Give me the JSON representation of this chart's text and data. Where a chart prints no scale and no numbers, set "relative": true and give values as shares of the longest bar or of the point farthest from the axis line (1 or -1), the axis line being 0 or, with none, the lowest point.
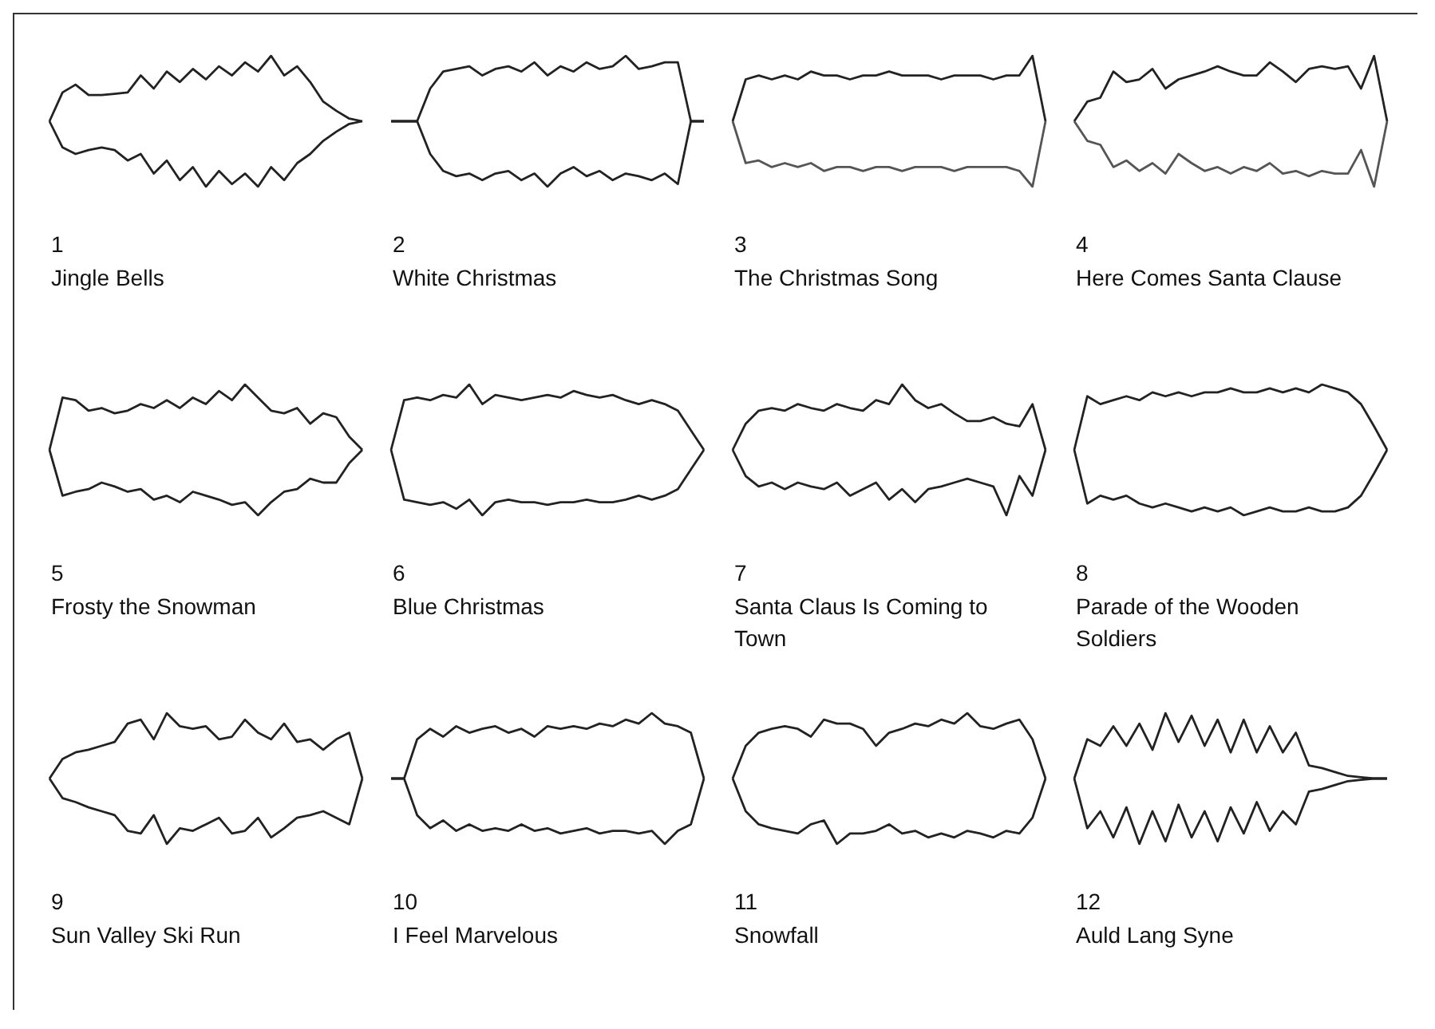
{
  "chart_data": [
    {
      "type": "line",
      "title": "1",
      "subtitle": "Jingle Bells",
      "relative": true,
      "marker": "none",
      "categories": [
        null,
        null,
        null,
        null,
        null,
        null,
        null,
        null,
        null,
        null,
        null,
        null,
        null,
        null,
        null,
        null,
        null,
        null,
        null,
        null,
        null,
        null,
        null,
        null,
        null
      ],
      "series": [
        {
          "color": "#222222",
          "values": [
            0.5,
            0.72,
            0.78,
            0.7,
            0.7,
            0.71,
            0.72,
            0.85,
            0.75,
            0.88,
            0.8,
            0.9,
            0.82,
            0.92,
            0.85,
            0.95,
            0.88,
            1,
            0.85,
            0.92,
            0.8,
            0.65,
            0.58,
            0.52,
            0.5
          ]
        },
        {
          "color": "#222222",
          "values": [
            0.5,
            0.3,
            0.25,
            0.28,
            0.3,
            0.28,
            0.2,
            0.25,
            0.1,
            0.2,
            0.05,
            0.15,
            0,
            0.12,
            0.02,
            0.1,
            0,
            0.15,
            0.05,
            0.18,
            0.25,
            0.35,
            0.42,
            0.48,
            0.5
          ]
        }
      ]
    },
    {
      "type": "line",
      "title": "2",
      "subtitle": "White Christmas",
      "relative": true,
      "marker": "none",
      "categories": [
        null,
        null,
        null,
        null,
        null,
        null,
        null,
        null,
        null,
        null,
        null,
        null,
        null,
        null,
        null,
        null,
        null,
        null,
        null,
        null,
        null,
        null,
        null,
        null,
        null
      ],
      "series": [
        {
          "color": "#222222",
          "values": [
            0.5,
            0.5,
            0.5,
            0.75,
            0.88,
            0.9,
            0.92,
            0.85,
            0.9,
            0.92,
            0.88,
            0.95,
            0.85,
            0.92,
            0.88,
            0.95,
            0.9,
            0.92,
            1,
            0.9,
            0.92,
            0.95,
            0.95,
            0.5,
            0.5
          ]
        },
        {
          "color": "#222222",
          "values": [
            0.5,
            0.5,
            0.5,
            0.25,
            0.12,
            0.08,
            0.1,
            0.05,
            0.1,
            0.12,
            0.05,
            0.1,
            0,
            0.1,
            0.15,
            0.08,
            0.12,
            0.05,
            0.1,
            0.08,
            0.05,
            0.1,
            0.02,
            0.5,
            0.5
          ]
        }
      ]
    },
    {
      "type": "line",
      "title": "3",
      "subtitle": "The Christmas Song",
      "relative": true,
      "marker": "none",
      "categories": [
        null,
        null,
        null,
        null,
        null,
        null,
        null,
        null,
        null,
        null,
        null,
        null,
        null,
        null,
        null,
        null,
        null,
        null,
        null,
        null,
        null,
        null,
        null,
        null,
        null
      ],
      "series": [
        {
          "color": "#222222",
          "values": [
            0.5,
            0.82,
            0.85,
            0.82,
            0.85,
            0.82,
            0.88,
            0.85,
            0.85,
            0.82,
            0.85,
            0.85,
            0.88,
            0.85,
            0.85,
            0.85,
            0.82,
            0.85,
            0.85,
            0.85,
            0.82,
            0.85,
            0.85,
            1,
            0.5
          ]
        },
        {
          "color": "#555555",
          "values": [
            0.5,
            0.18,
            0.2,
            0.15,
            0.18,
            0.15,
            0.18,
            0.12,
            0.15,
            0.15,
            0.12,
            0.15,
            0.15,
            0.12,
            0.15,
            0.15,
            0.15,
            0.12,
            0.15,
            0.15,
            0.15,
            0.15,
            0.12,
            0,
            0.5
          ]
        }
      ]
    },
    {
      "type": "line",
      "title": "4",
      "subtitle": "Here Comes Santa Clause",
      "relative": true,
      "marker": "none",
      "categories": [
        null,
        null,
        null,
        null,
        null,
        null,
        null,
        null,
        null,
        null,
        null,
        null,
        null,
        null,
        null,
        null,
        null,
        null,
        null,
        null,
        null,
        null,
        null,
        null,
        null
      ],
      "series": [
        {
          "color": "#222222",
          "values": [
            0.5,
            0.65,
            0.68,
            0.88,
            0.8,
            0.82,
            0.9,
            0.75,
            0.82,
            0.85,
            0.88,
            0.92,
            0.88,
            0.85,
            0.85,
            0.95,
            0.88,
            0.8,
            0.9,
            0.92,
            0.9,
            0.92,
            0.75,
            1,
            0.5
          ]
        },
        {
          "color": "#555555",
          "values": [
            0.5,
            0.35,
            0.32,
            0.15,
            0.2,
            0.12,
            0.18,
            0.1,
            0.25,
            0.18,
            0.12,
            0.15,
            0.1,
            0.15,
            0.12,
            0.18,
            0.1,
            0.12,
            0.08,
            0.12,
            0.1,
            0.1,
            0.28,
            0,
            0.5
          ]
        }
      ]
    },
    {
      "type": "line",
      "title": "5",
      "subtitle": "Frosty the Snowman",
      "relative": true,
      "marker": "none",
      "categories": [
        null,
        null,
        null,
        null,
        null,
        null,
        null,
        null,
        null,
        null,
        null,
        null,
        null,
        null,
        null,
        null,
        null,
        null,
        null,
        null,
        null,
        null,
        null,
        null,
        null
      ],
      "series": [
        {
          "color": "#222222",
          "values": [
            0.5,
            0.9,
            0.88,
            0.8,
            0.82,
            0.78,
            0.8,
            0.85,
            0.82,
            0.88,
            0.82,
            0.9,
            0.85,
            0.95,
            0.88,
            1,
            0.9,
            0.8,
            0.78,
            0.82,
            0.7,
            0.78,
            0.75,
            0.6,
            0.5
          ]
        },
        {
          "color": "#222222",
          "values": [
            0.5,
            0.15,
            0.18,
            0.2,
            0.25,
            0.22,
            0.18,
            0.2,
            0.12,
            0.15,
            0.1,
            0.18,
            0.15,
            0.12,
            0.08,
            0.1,
            0,
            0.1,
            0.18,
            0.2,
            0.28,
            0.25,
            0.25,
            0.4,
            0.5
          ]
        }
      ]
    },
    {
      "type": "line",
      "title": "6",
      "subtitle": "Blue Christmas",
      "relative": true,
      "marker": "none",
      "categories": [
        null,
        null,
        null,
        null,
        null,
        null,
        null,
        null,
        null,
        null,
        null,
        null,
        null,
        null,
        null,
        null,
        null,
        null,
        null,
        null,
        null,
        null,
        null,
        null,
        null
      ],
      "series": [
        {
          "color": "#222222",
          "values": [
            0.5,
            0.88,
            0.9,
            0.88,
            0.92,
            0.9,
            1,
            0.85,
            0.92,
            0.9,
            0.88,
            0.9,
            0.92,
            0.9,
            0.95,
            0.92,
            0.9,
            0.92,
            0.88,
            0.85,
            0.88,
            0.85,
            0.8,
            0.65,
            0.5
          ]
        },
        {
          "color": "#222222",
          "values": [
            0.5,
            0.12,
            0.1,
            0.08,
            0.1,
            0.05,
            0.12,
            0,
            0.1,
            0.12,
            0.1,
            0.1,
            0.08,
            0.1,
            0.1,
            0.12,
            0.1,
            0.1,
            0.12,
            0.15,
            0.12,
            0.15,
            0.2,
            0.35,
            0.5
          ]
        }
      ]
    },
    {
      "type": "line",
      "title": "7",
      "subtitle": "Santa Claus Is Coming to Town",
      "relative": true,
      "marker": "none",
      "categories": [
        null,
        null,
        null,
        null,
        null,
        null,
        null,
        null,
        null,
        null,
        null,
        null,
        null,
        null,
        null,
        null,
        null,
        null,
        null,
        null,
        null,
        null,
        null,
        null,
        null
      ],
      "series": [
        {
          "color": "#222222",
          "values": [
            0.5,
            0.7,
            0.8,
            0.82,
            0.8,
            0.85,
            0.82,
            0.8,
            0.85,
            0.82,
            0.8,
            0.88,
            0.85,
            1,
            0.88,
            0.82,
            0.85,
            0.78,
            0.72,
            0.72,
            0.75,
            0.7,
            0.68,
            0.85,
            0.5
          ]
        },
        {
          "color": "#222222",
          "values": [
            0.5,
            0.3,
            0.22,
            0.25,
            0.2,
            0.25,
            0.22,
            0.2,
            0.25,
            0.15,
            0.2,
            0.25,
            0.12,
            0.2,
            0.1,
            0.2,
            0.22,
            0.25,
            0.28,
            0.25,
            0.22,
            0,
            0.3,
            0.15,
            0.5
          ]
        }
      ]
    },
    {
      "type": "line",
      "title": "8",
      "subtitle": "Parade of the Wooden Soldiers",
      "relative": true,
      "marker": "none",
      "categories": [
        null,
        null,
        null,
        null,
        null,
        null,
        null,
        null,
        null,
        null,
        null,
        null,
        null,
        null,
        null,
        null,
        null,
        null,
        null,
        null,
        null,
        null,
        null,
        null,
        null
      ],
      "series": [
        {
          "color": "#222222",
          "values": [
            0.5,
            0.91,
            0.85,
            0.88,
            0.91,
            0.88,
            0.94,
            0.91,
            0.94,
            0.91,
            0.94,
            0.94,
            0.97,
            0.94,
            0.94,
            0.97,
            0.94,
            0.97,
            0.94,
            1,
            0.97,
            0.94,
            0.85,
            0.68,
            0.5
          ]
        },
        {
          "color": "#222222",
          "values": [
            0.5,
            0.09,
            0.15,
            0.12,
            0.15,
            0.09,
            0.06,
            0.09,
            0.06,
            0.03,
            0.06,
            0.03,
            0.06,
            0,
            0.03,
            0.06,
            0.03,
            0.03,
            0.06,
            0.03,
            0.03,
            0.06,
            0.15,
            0.32,
            0.5
          ]
        }
      ]
    },
    {
      "type": "line",
      "title": "9",
      "subtitle": "Sun Valley Ski Run",
      "relative": true,
      "marker": "none",
      "categories": [
        null,
        null,
        null,
        null,
        null,
        null,
        null,
        null,
        null,
        null,
        null,
        null,
        null,
        null,
        null,
        null,
        null,
        null,
        null,
        null,
        null,
        null,
        null,
        null,
        null
      ],
      "series": [
        {
          "color": "#222222",
          "values": [
            0.5,
            0.65,
            0.7,
            0.72,
            0.75,
            0.78,
            0.92,
            0.95,
            0.8,
            1,
            0.9,
            0.88,
            0.9,
            0.8,
            0.82,
            0.95,
            0.85,
            0.8,
            0.92,
            0.78,
            0.8,
            0.72,
            0.8,
            0.85,
            0.5
          ]
        },
        {
          "color": "#222222",
          "values": [
            0.5,
            0.35,
            0.32,
            0.28,
            0.25,
            0.22,
            0.1,
            0.08,
            0.22,
            0,
            0.12,
            0.1,
            0.15,
            0.2,
            0.08,
            0.1,
            0.2,
            0.05,
            0.12,
            0.2,
            0.22,
            0.25,
            0.2,
            0.15,
            0.5
          ]
        }
      ]
    },
    {
      "type": "line",
      "title": "10",
      "subtitle": "I Feel Marvelous",
      "relative": true,
      "marker": "none",
      "categories": [
        null,
        null,
        null,
        null,
        null,
        null,
        null,
        null,
        null,
        null,
        null,
        null,
        null,
        null,
        null,
        null,
        null,
        null,
        null,
        null,
        null,
        null,
        null,
        null,
        null
      ],
      "series": [
        {
          "color": "#222222",
          "values": [
            0.5,
            0.5,
            0.8,
            0.88,
            0.82,
            0.9,
            0.85,
            0.88,
            0.9,
            0.85,
            0.88,
            0.82,
            0.9,
            0.88,
            0.9,
            0.88,
            0.92,
            0.9,
            0.95,
            0.92,
            1,
            0.92,
            0.9,
            0.85,
            0.5
          ]
        },
        {
          "color": "#222222",
          "values": [
            0.5,
            0.5,
            0.22,
            0.12,
            0.18,
            0.1,
            0.15,
            0.1,
            0.12,
            0.1,
            0.15,
            0.1,
            0.12,
            0.08,
            0.1,
            0.12,
            0.08,
            0.1,
            0.1,
            0.08,
            0.1,
            0,
            0.1,
            0.15,
            0.5
          ]
        }
      ]
    },
    {
      "type": "line",
      "title": "11",
      "subtitle": "Snowfall",
      "relative": true,
      "marker": "none",
      "categories": [
        null,
        null,
        null,
        null,
        null,
        null,
        null,
        null,
        null,
        null,
        null,
        null,
        null,
        null,
        null,
        null,
        null,
        null,
        null,
        null,
        null,
        null,
        null,
        null,
        null
      ],
      "series": [
        {
          "color": "#222222",
          "values": [
            0.5,
            0.75,
            0.85,
            0.88,
            0.9,
            0.88,
            0.82,
            0.95,
            0.92,
            0.92,
            0.88,
            0.75,
            0.85,
            0.88,
            0.92,
            0.9,
            0.95,
            0.92,
            1,
            0.9,
            0.88,
            0.92,
            0.95,
            0.8,
            0.5
          ]
        },
        {
          "color": "#222222",
          "values": [
            0.5,
            0.25,
            0.15,
            0.12,
            0.1,
            0.08,
            0.15,
            0.18,
            0,
            0.08,
            0.08,
            0.1,
            0.15,
            0.08,
            0.1,
            0.05,
            0.08,
            0.05,
            0.1,
            0.08,
            0.05,
            0.1,
            0.08,
            0.2,
            0.5
          ]
        }
      ]
    },
    {
      "type": "line",
      "title": "12",
      "subtitle": "Auld Lang Syne",
      "relative": true,
      "marker": "none",
      "categories": [
        null,
        null,
        null,
        null,
        null,
        null,
        null,
        null,
        null,
        null,
        null,
        null,
        null,
        null,
        null,
        null,
        null,
        null,
        null,
        null,
        null,
        null,
        null,
        null,
        null
      ],
      "series": [
        {
          "color": "#222222",
          "values": [
            0.5,
            0.8,
            0.75,
            0.9,
            0.75,
            0.92,
            0.72,
            1,
            0.78,
            0.98,
            0.75,
            0.95,
            0.7,
            0.95,
            0.7,
            0.9,
            0.7,
            0.85,
            0.6,
            0.58,
            0.55,
            0.52,
            0.51,
            0.5,
            0.5
          ]
        },
        {
          "color": "#222222",
          "values": [
            0.5,
            0.12,
            0.25,
            0.05,
            0.28,
            0,
            0.25,
            0.02,
            0.3,
            0.05,
            0.25,
            0.02,
            0.28,
            0.08,
            0.32,
            0.1,
            0.25,
            0.15,
            0.4,
            0.42,
            0.45,
            0.48,
            0.49,
            0.5,
            0.5
          ]
        }
      ]
    }
  ]
}
